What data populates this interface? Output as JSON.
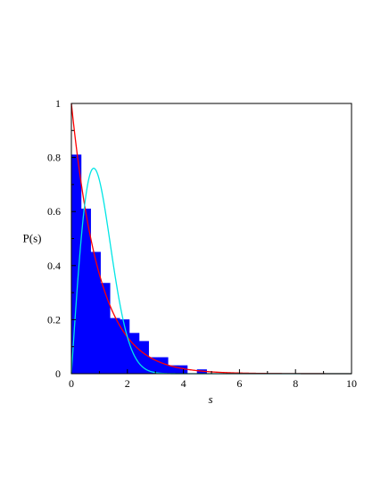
{
  "chart_data": {
    "type": "bar",
    "title": "",
    "xlabel": "s",
    "ylabel": "P(s)",
    "xlim": [
      0,
      10
    ],
    "ylim": [
      0,
      1
    ],
    "xticks": [
      0,
      2,
      4,
      6,
      8,
      10
    ],
    "yticks": [
      0,
      0.2,
      0.4,
      0.6,
      0.8,
      1
    ],
    "grid": false,
    "legend": "none",
    "histogram": {
      "color": "#0000ff",
      "bins": [
        {
          "x0": 0.0,
          "x1": 0.35,
          "value": 0.81
        },
        {
          "x0": 0.35,
          "x1": 0.69,
          "value": 0.61
        },
        {
          "x0": 0.69,
          "x1": 1.04,
          "value": 0.45
        },
        {
          "x0": 1.04,
          "x1": 1.38,
          "value": 0.335
        },
        {
          "x0": 1.38,
          "x1": 1.73,
          "value": 0.205
        },
        {
          "x0": 1.73,
          "x1": 2.07,
          "value": 0.2
        },
        {
          "x0": 2.07,
          "x1": 2.42,
          "value": 0.15
        },
        {
          "x0": 2.42,
          "x1": 2.76,
          "value": 0.12
        },
        {
          "x0": 2.76,
          "x1": 3.11,
          "value": 0.06
        },
        {
          "x0": 3.11,
          "x1": 3.45,
          "value": 0.06
        },
        {
          "x0": 3.45,
          "x1": 3.8,
          "value": 0.03
        },
        {
          "x0": 3.8,
          "x1": 4.14,
          "value": 0.03
        },
        {
          "x0": 4.14,
          "x1": 4.49,
          "value": 0.0
        },
        {
          "x0": 4.49,
          "x1": 4.83,
          "value": 0.015
        }
      ]
    },
    "curves": [
      {
        "function": "exp(-s)",
        "color": "#ff0000"
      },
      {
        "function": "(pi/2)*s*exp(-pi*s^2/4)",
        "color": "#00e5e5"
      }
    ]
  }
}
